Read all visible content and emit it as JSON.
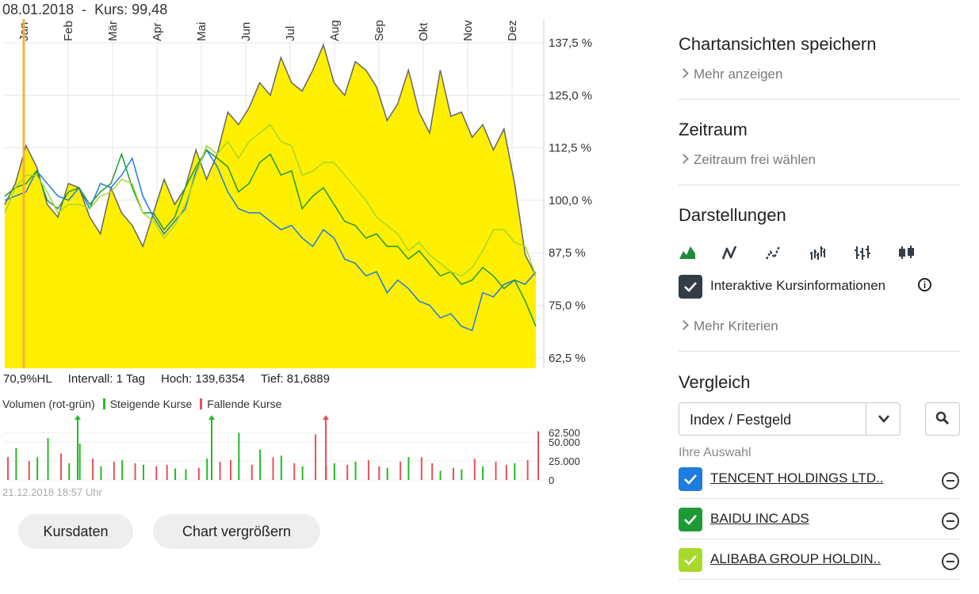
{
  "hover": {
    "date": "08.01.2018",
    "sep": "-",
    "price_label": "Kurs:",
    "price": "99,48"
  },
  "stats": {
    "hl": "70,9%HL",
    "interval": "Intervall: 1 Tag",
    "high": "Hoch: 139,6354",
    "low": "Tief: 81,6889"
  },
  "volume_legend": {
    "title": "Volumen (rot-grün)",
    "rising": "Steigende Kurse",
    "falling": "Fallende Kurse"
  },
  "timestamp": "21.12.2018 18:57 Uhr",
  "buttons": {
    "kursdaten": "Kursdaten",
    "enlarge": "Chart vergrößern"
  },
  "panel": {
    "save_title": "Chartansichten speichern",
    "save_more": "Mehr anzeigen",
    "period_title": "Zeitraum",
    "period_free": "Zeitraum frei wählen",
    "display_title": "Darstellungen",
    "chart_types": [
      "mountain-icon",
      "line-icon",
      "dotted-line-icon",
      "ohlc-bars-icon",
      "ohlc-ticks-icon",
      "candlestick-icon"
    ],
    "interactive_label": "Interaktive Kursinformationen",
    "more_criteria": "Mehr Kriterien",
    "compare_title": "Vergleich",
    "compare_select": "Index / Festgeld",
    "selection_label": "Ihre Auswahl",
    "comparisons": [
      {
        "name": "TENCENT HOLDINGS LTD..",
        "color": "#1e7be0",
        "checked": true
      },
      {
        "name": "BAIDU INC ADS",
        "color": "#1e9a35",
        "checked": true
      },
      {
        "name": "ALIBABA GROUP HOLDIN..",
        "color": "#a6d929",
        "checked": true
      }
    ]
  },
  "colors": {
    "area_fill": "#ffef00",
    "area_line": "#666666",
    "crosshair": "#f5b041",
    "rising": "#22bb22",
    "falling": "#e8505b",
    "dark": "#333d47"
  },
  "chart_data": [
    {
      "type": "area",
      "y_unit": "%",
      "x_ticks": [
        "Jan",
        "Feb",
        "Mär",
        "Apr",
        "Mai",
        "Jun",
        "Jul",
        "Aug",
        "Sep",
        "Okt",
        "Nov",
        "Dez"
      ],
      "y_ticks": [
        "137,5 %",
        "125,0 %",
        "112,5 %",
        "100,0 %",
        "87,5 %",
        "75,0 %",
        "62,5 %"
      ],
      "ylim": [
        62.5,
        137.5
      ],
      "series": [
        {
          "name": "",
          "role": "main",
          "values": [
            99,
            104,
            113,
            108,
            99,
            96,
            104,
            103,
            96,
            92,
            103,
            97,
            94,
            89,
            97,
            105,
            99,
            103,
            112,
            105,
            111,
            121,
            118,
            122,
            128,
            125,
            134,
            128,
            126,
            131,
            137,
            128,
            125,
            133,
            131,
            127,
            119,
            123,
            131,
            121,
            116,
            131,
            120,
            121,
            115,
            118,
            112,
            117,
            104,
            87,
            82
          ]
        },
        {
          "name": "TENCENT HOLDINGS LTD..",
          "values": [
            100,
            101,
            102,
            107,
            104,
            101,
            100,
            103,
            98,
            104,
            103,
            106,
            110,
            101,
            96,
            92,
            95,
            98,
            107,
            112,
            108,
            102,
            98,
            97,
            97,
            95,
            93,
            94,
            91,
            89,
            93,
            91,
            86,
            85,
            82,
            83,
            78,
            81,
            79,
            76,
            75,
            72,
            73,
            70,
            69,
            78,
            77,
            80,
            81,
            80,
            83
          ]
        },
        {
          "name": "BAIDU INC ADS",
          "values": [
            101,
            103,
            104,
            107,
            100,
            98,
            102,
            103,
            99,
            102,
            104,
            111,
            103,
            97,
            97,
            93,
            96,
            103,
            108,
            112,
            110,
            108,
            102,
            104,
            109,
            111,
            106,
            107,
            98,
            101,
            103,
            99,
            95,
            94,
            91,
            92,
            89,
            89,
            86,
            88,
            85,
            82,
            83,
            80,
            81,
            84,
            82,
            79,
            81,
            76,
            70
          ]
        },
        {
          "name": "ALIBABA GROUP HOLDIN..",
          "values": [
            97,
            103,
            106,
            106,
            102,
            97,
            99,
            99,
            98,
            101,
            102,
            105,
            104,
            97,
            95,
            91,
            94,
            99,
            106,
            113,
            111,
            114,
            110,
            114,
            116,
            118,
            114,
            113,
            106,
            107,
            109,
            109,
            106,
            103,
            100,
            96,
            94,
            92,
            88,
            90,
            87,
            85,
            83,
            82,
            84,
            88,
            93,
            93,
            90,
            89,
            82
          ]
        }
      ]
    },
    {
      "type": "bar",
      "y_ticks": [
        "62.500",
        "50.000",
        "25.000",
        "0"
      ],
      "ylim": [
        0,
        62500
      ],
      "series": [
        {
          "name": "Steigende Kurse",
          "values": [
            0,
            42000,
            0,
            30000,
            55000,
            0,
            22000,
            48000,
            0,
            18000,
            0,
            26000,
            0,
            20000,
            0,
            0,
            15000,
            14000,
            0,
            28000,
            0,
            0,
            62000,
            0,
            40000,
            0,
            32000,
            0,
            18000,
            0,
            0,
            22000,
            0,
            24000,
            0,
            0,
            16000,
            0,
            30000,
            0,
            0,
            12000,
            0,
            14000,
            0,
            18000,
            0,
            0,
            22000,
            0,
            0
          ]
        },
        {
          "name": "Fallende Kurse",
          "values": [
            30000,
            0,
            25000,
            0,
            0,
            35000,
            0,
            0,
            28000,
            0,
            24000,
            0,
            22000,
            0,
            18000,
            20000,
            0,
            0,
            16000,
            0,
            24000,
            26000,
            0,
            20000,
            0,
            30000,
            0,
            22000,
            0,
            60000,
            18000,
            0,
            20000,
            0,
            26000,
            18000,
            0,
            24000,
            0,
            30000,
            22000,
            0,
            16000,
            0,
            28000,
            0,
            24000,
            20000,
            0,
            26000,
            64000
          ]
        }
      ]
    }
  ]
}
